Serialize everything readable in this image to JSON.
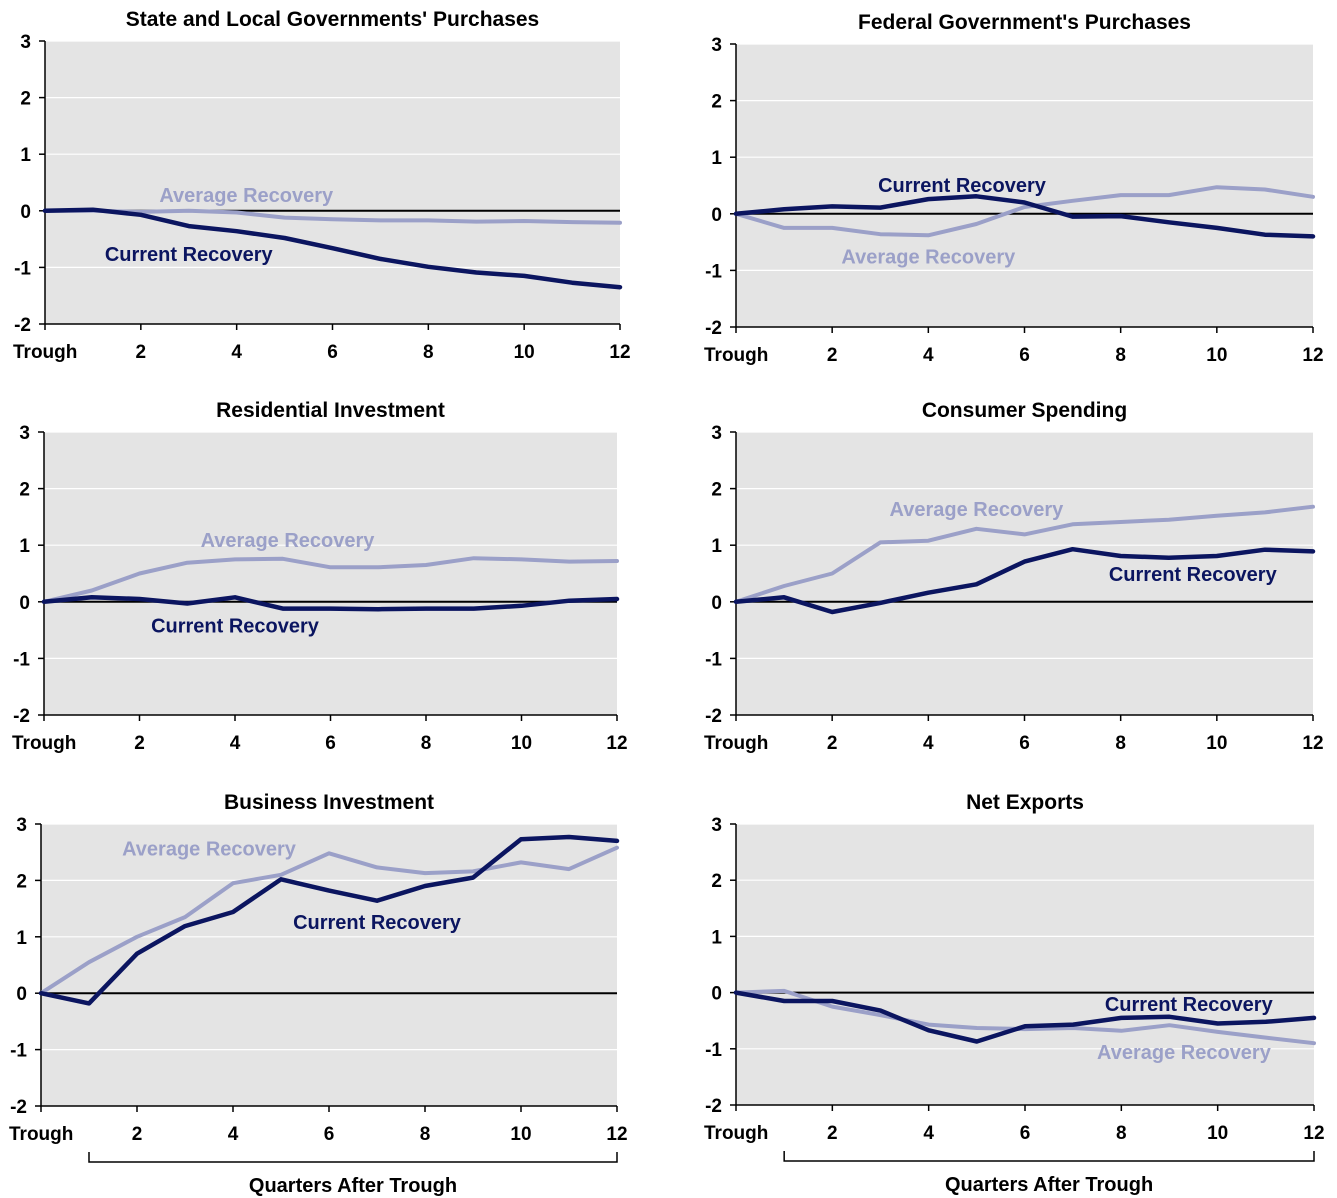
{
  "colors": {
    "current": "#0b1560",
    "average": "#9ba0c8",
    "plot_background": "#e4e4e4",
    "gridline": "#ffffff",
    "zero_line": "#000000"
  },
  "chart_data": [
    {
      "type": "line",
      "title": "State and Local Governments' Purchases",
      "xlabel": "",
      "ylabel": "",
      "xlim": [
        0,
        12
      ],
      "ylim": [
        -2,
        3
      ],
      "x_ticks": [
        0,
        2,
        4,
        6,
        8,
        10,
        12
      ],
      "x_tick_labels": [
        "Trough",
        "2",
        "4",
        "6",
        "8",
        "10",
        "12"
      ],
      "y_ticks": [
        -2,
        -1,
        0,
        1,
        2,
        3
      ],
      "y_tick_labels": [
        "-2",
        "-1",
        "0",
        "1",
        "2",
        "3"
      ],
      "grid": true,
      "x": [
        0,
        1,
        2,
        3,
        4,
        5,
        6,
        7,
        8,
        9,
        10,
        11,
        12
      ],
      "series": [
        {
          "name": "Average Recovery",
          "key": "average",
          "values": [
            0,
            0,
            -0.02,
            0,
            -0.03,
            -0.12,
            -0.15,
            -0.17,
            -0.17,
            -0.19,
            -0.18,
            -0.2,
            -0.21
          ]
        },
        {
          "name": "Current Recovery",
          "key": "current",
          "values": [
            0,
            0.02,
            -0.07,
            -0.27,
            -0.36,
            -0.48,
            -0.66,
            -0.85,
            -0.99,
            -1.09,
            -1.15,
            -1.27,
            -1.35
          ]
        }
      ],
      "annotations": [
        {
          "text": "Average Recovery",
          "series": "average",
          "x": 4.2,
          "y": 0.28
        },
        {
          "text": "Current Recovery",
          "series": "current",
          "x": 3.0,
          "y": -0.76
        }
      ]
    },
    {
      "type": "line",
      "title": "Federal Government's Purchases",
      "xlabel": "",
      "ylabel": "",
      "xlim": [
        0,
        12
      ],
      "ylim": [
        -2,
        3
      ],
      "x_ticks": [
        0,
        2,
        4,
        6,
        8,
        10,
        12
      ],
      "x_tick_labels": [
        "Trough",
        "2",
        "4",
        "6",
        "8",
        "10",
        "12"
      ],
      "y_ticks": [
        -2,
        -1,
        0,
        1,
        2,
        3
      ],
      "y_tick_labels": [
        "-2",
        "-1",
        "0",
        "1",
        "2",
        "3"
      ],
      "grid": true,
      "x": [
        0,
        1,
        2,
        3,
        4,
        5,
        6,
        7,
        8,
        9,
        10,
        11,
        12
      ],
      "series": [
        {
          "name": "Average Recovery",
          "key": "average",
          "values": [
            0,
            -0.25,
            -0.25,
            -0.36,
            -0.38,
            -0.18,
            0.12,
            0.23,
            0.33,
            0.33,
            0.47,
            0.43,
            0.3
          ]
        },
        {
          "name": "Current Recovery",
          "key": "current",
          "values": [
            0,
            0.08,
            0.13,
            0.11,
            0.26,
            0.31,
            0.2,
            -0.05,
            -0.04,
            -0.15,
            -0.25,
            -0.37,
            -0.4
          ]
        }
      ],
      "annotations": [
        {
          "text": "Current Recovery",
          "series": "current",
          "x": 4.7,
          "y": 0.51
        },
        {
          "text": "Average Recovery",
          "series": "average",
          "x": 4.0,
          "y": -0.75
        }
      ]
    },
    {
      "type": "line",
      "title": "Residential Investment",
      "xlabel": "",
      "ylabel": "",
      "xlim": [
        0,
        12
      ],
      "ylim": [
        -2,
        3
      ],
      "x_ticks": [
        0,
        2,
        4,
        6,
        8,
        10,
        12
      ],
      "x_tick_labels": [
        "Trough",
        "2",
        "4",
        "6",
        "8",
        "10",
        "12"
      ],
      "y_ticks": [
        -2,
        -1,
        0,
        1,
        2,
        3
      ],
      "y_tick_labels": [
        "-2",
        "-1",
        "0",
        "1",
        "2",
        "3"
      ],
      "grid": true,
      "x": [
        0,
        1,
        2,
        3,
        4,
        5,
        6,
        7,
        8,
        9,
        10,
        11,
        12
      ],
      "series": [
        {
          "name": "Average Recovery",
          "key": "average",
          "values": [
            0,
            0.2,
            0.5,
            0.69,
            0.75,
            0.76,
            0.61,
            0.61,
            0.65,
            0.77,
            0.75,
            0.71,
            0.72
          ]
        },
        {
          "name": "Current Recovery",
          "key": "current",
          "values": [
            0,
            0.08,
            0.05,
            -0.03,
            0.08,
            -0.12,
            -0.12,
            -0.13,
            -0.12,
            -0.12,
            -0.07,
            0.02,
            0.05
          ]
        }
      ],
      "annotations": [
        {
          "text": "Average Recovery",
          "series": "average",
          "x": 5.1,
          "y": 1.09
        },
        {
          "text": "Current Recovery",
          "series": "current",
          "x": 4.0,
          "y": -0.42
        }
      ]
    },
    {
      "type": "line",
      "title": "Consumer Spending",
      "xlabel": "",
      "ylabel": "",
      "xlim": [
        0,
        12
      ],
      "ylim": [
        -2,
        3
      ],
      "x_ticks": [
        0,
        2,
        4,
        6,
        8,
        10,
        12
      ],
      "x_tick_labels": [
        "Trough",
        "2",
        "4",
        "6",
        "8",
        "10",
        "12"
      ],
      "y_ticks": [
        -2,
        -1,
        0,
        1,
        2,
        3
      ],
      "y_tick_labels": [
        "-2",
        "-1",
        "0",
        "1",
        "2",
        "3"
      ],
      "grid": true,
      "x": [
        0,
        1,
        2,
        3,
        4,
        5,
        6,
        7,
        8,
        9,
        10,
        11,
        12
      ],
      "series": [
        {
          "name": "Average Recovery",
          "key": "average",
          "values": [
            0,
            0.28,
            0.5,
            1.05,
            1.08,
            1.29,
            1.19,
            1.37,
            1.41,
            1.45,
            1.52,
            1.58,
            1.68
          ]
        },
        {
          "name": "Current Recovery",
          "key": "current",
          "values": [
            0,
            0.08,
            -0.18,
            -0.02,
            0.16,
            0.31,
            0.71,
            0.93,
            0.81,
            0.78,
            0.81,
            0.92,
            0.89
          ]
        }
      ],
      "annotations": [
        {
          "text": "Average Recovery",
          "series": "average",
          "x": 5.0,
          "y": 1.64
        },
        {
          "text": "Current Recovery",
          "series": "current",
          "x": 9.5,
          "y": 0.49
        }
      ]
    },
    {
      "type": "line",
      "title": "Business Investment",
      "xlabel": "Quarters After Trough",
      "ylabel": "",
      "xlim": [
        0,
        12
      ],
      "ylim": [
        -2,
        3
      ],
      "x_ticks": [
        0,
        2,
        4,
        6,
        8,
        10,
        12
      ],
      "x_tick_labels": [
        "Trough",
        "2",
        "4",
        "6",
        "8",
        "10",
        "12"
      ],
      "y_ticks": [
        -2,
        -1,
        0,
        1,
        2,
        3
      ],
      "y_tick_labels": [
        "-2",
        "-1",
        "0",
        "1",
        "2",
        "3"
      ],
      "grid": true,
      "x": [
        0,
        1,
        2,
        3,
        4,
        5,
        6,
        7,
        8,
        9,
        10,
        11,
        12
      ],
      "series": [
        {
          "name": "Average Recovery",
          "key": "average",
          "values": [
            0,
            0.55,
            1.0,
            1.35,
            1.95,
            2.1,
            2.48,
            2.23,
            2.13,
            2.16,
            2.32,
            2.2,
            2.58
          ]
        },
        {
          "name": "Current Recovery",
          "key": "current",
          "values": [
            0,
            -0.18,
            0.7,
            1.19,
            1.44,
            2.02,
            1.82,
            1.64,
            1.9,
            2.05,
            2.73,
            2.77,
            2.7
          ]
        }
      ],
      "annotations": [
        {
          "text": "Average Recovery",
          "series": "average",
          "x": 3.5,
          "y": 2.57
        },
        {
          "text": "Current Recovery",
          "series": "current",
          "x": 7.0,
          "y": 1.26
        }
      ]
    },
    {
      "type": "line",
      "title": "Net Exports",
      "xlabel": "Quarters After Trough",
      "ylabel": "",
      "xlim": [
        0,
        12
      ],
      "ylim": [
        -2,
        3
      ],
      "x_ticks": [
        0,
        2,
        4,
        6,
        8,
        10,
        12
      ],
      "x_tick_labels": [
        "Trough",
        "2",
        "4",
        "6",
        "8",
        "10",
        "12"
      ],
      "y_ticks": [
        -2,
        -1,
        0,
        1,
        2,
        3
      ],
      "y_tick_labels": [
        "-2",
        "-1",
        "0",
        "1",
        "2",
        "3"
      ],
      "grid": true,
      "x": [
        0,
        1,
        2,
        3,
        4,
        5,
        6,
        7,
        8,
        9,
        10,
        11,
        12
      ],
      "series": [
        {
          "name": "Average Recovery",
          "key": "average",
          "values": [
            0,
            0.03,
            -0.25,
            -0.4,
            -0.57,
            -0.63,
            -0.65,
            -0.63,
            -0.68,
            -0.58,
            -0.7,
            -0.8,
            -0.9
          ]
        },
        {
          "name": "Current Recovery",
          "key": "current",
          "values": [
            0,
            -0.15,
            -0.15,
            -0.32,
            -0.67,
            -0.87,
            -0.6,
            -0.57,
            -0.45,
            -0.43,
            -0.55,
            -0.52,
            -0.45
          ]
        }
      ],
      "annotations": [
        {
          "text": "Current Recovery",
          "series": "current",
          "x": 9.4,
          "y": -0.2
        },
        {
          "text": "Average Recovery",
          "series": "average",
          "x": 9.3,
          "y": -1.06
        }
      ]
    }
  ]
}
